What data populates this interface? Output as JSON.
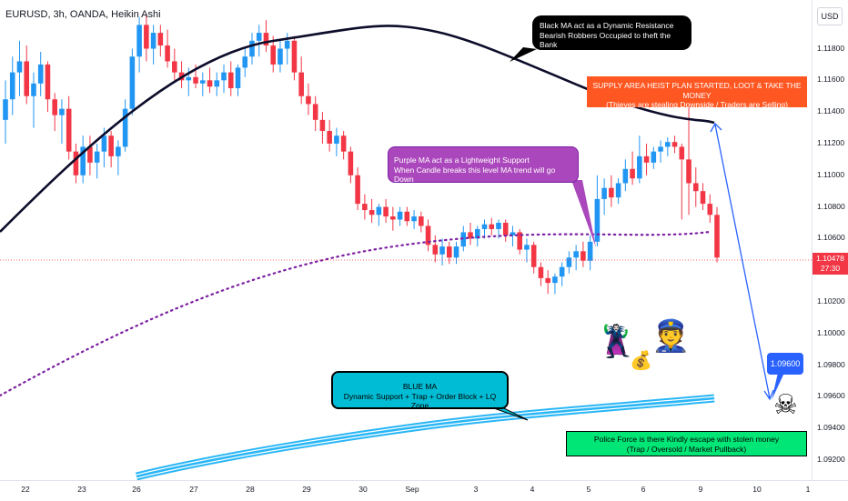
{
  "header": {
    "title": "EURUSD, 3h, OANDA, Heikin Ashi"
  },
  "currency_button": "USD",
  "price_tag": {
    "price": "1.10478",
    "countdown": "27:30"
  },
  "annotations": {
    "black_ma": [
      "Black MA act as a Dynamic Resistance",
      "Bearish Robbers Occupied to theft the Bank"
    ],
    "supply": [
      "SUPPLY AREA HEIST PLAN STARTED, LOOT & TAKE THE MONEY",
      "(Thieves are stealing Downside / Traders are Selling)"
    ],
    "purple_ma": [
      "Purple MA act as a Lightweight Support",
      "When Candle breaks this level MA trend will go Down"
    ],
    "blue_ma": [
      "BLUE MA",
      "Dynamic Support + Trap + Order Block + LQ Zone"
    ],
    "police": [
      "Police Force is there Kindly escape with stolen money",
      "(Trap / Oversold / Market Pullback)"
    ],
    "target": "1.09600"
  },
  "icons": {
    "robber": "thief-icon",
    "police": "police-officer-icon",
    "money": "money-bag-icon",
    "skull": "skull-crossbones-icon"
  },
  "colors": {
    "up": "#2196f3",
    "down": "#f23645",
    "black_ma": "#0d0d2b",
    "purple_ma": "#7b1fa2",
    "blue_ma": "#29b6f6",
    "arrow": "#2962ff"
  },
  "chart_data": {
    "type": "candlestick",
    "x_tick_labels": [
      "22",
      "23",
      "24",
      "25",
      "26",
      "27",
      "28",
      "29",
      "30",
      "Sep",
      "3",
      "4",
      "5",
      "6",
      "9",
      "10",
      "1"
    ],
    "y_tick_labels": [
      "1.11800",
      "1.11600",
      "1.11400",
      "1.11200",
      "1.11000",
      "1.10800",
      "1.10600",
      "1.10400",
      "1.10200",
      "1.10000",
      "1.09800",
      "1.09600",
      "1.09400",
      "1.09200"
    ],
    "ylim": [
      1.0912,
      1.1205
    ],
    "current_price": 1.10478,
    "target_price": 1.096,
    "candles": [
      {
        "o": 1.1135,
        "h": 1.116,
        "l": 1.112,
        "c": 1.1148
      },
      {
        "o": 1.1148,
        "h": 1.1175,
        "l": 1.1138,
        "c": 1.1165
      },
      {
        "o": 1.1165,
        "h": 1.1185,
        "l": 1.115,
        "c": 1.1172
      },
      {
        "o": 1.1172,
        "h": 1.1182,
        "l": 1.1145,
        "c": 1.115
      },
      {
        "o": 1.115,
        "h": 1.1165,
        "l": 1.113,
        "c": 1.1158
      },
      {
        "o": 1.1158,
        "h": 1.1178,
        "l": 1.115,
        "c": 1.117
      },
      {
        "o": 1.117,
        "h": 1.1172,
        "l": 1.114,
        "c": 1.1148
      },
      {
        "o": 1.1148,
        "h": 1.1152,
        "l": 1.1128,
        "c": 1.1138
      },
      {
        "o": 1.1138,
        "h": 1.1148,
        "l": 1.112,
        "c": 1.1142
      },
      {
        "o": 1.1142,
        "h": 1.115,
        "l": 1.111,
        "c": 1.1115
      },
      {
        "o": 1.1115,
        "h": 1.112,
        "l": 1.1095,
        "c": 1.11
      },
      {
        "o": 1.11,
        "h": 1.1125,
        "l": 1.1095,
        "c": 1.1118
      },
      {
        "o": 1.1118,
        "h": 1.1125,
        "l": 1.11,
        "c": 1.1108
      },
      {
        "o": 1.1108,
        "h": 1.112,
        "l": 1.1098,
        "c": 1.1115
      },
      {
        "o": 1.1115,
        "h": 1.113,
        "l": 1.1105,
        "c": 1.1125
      },
      {
        "o": 1.1125,
        "h": 1.1128,
        "l": 1.1105,
        "c": 1.1112
      },
      {
        "o": 1.1112,
        "h": 1.1122,
        "l": 1.11,
        "c": 1.1118
      },
      {
        "o": 1.1118,
        "h": 1.1148,
        "l": 1.1115,
        "c": 1.1142
      },
      {
        "o": 1.1142,
        "h": 1.118,
        "l": 1.1138,
        "c": 1.1175
      },
      {
        "o": 1.1175,
        "h": 1.12,
        "l": 1.1165,
        "c": 1.1195
      },
      {
        "o": 1.1195,
        "h": 1.1202,
        "l": 1.1172,
        "c": 1.118
      },
      {
        "o": 1.118,
        "h": 1.1195,
        "l": 1.117,
        "c": 1.119
      },
      {
        "o": 1.119,
        "h": 1.1195,
        "l": 1.1175,
        "c": 1.1182
      },
      {
        "o": 1.1182,
        "h": 1.1192,
        "l": 1.1168,
        "c": 1.1172
      },
      {
        "o": 1.1172,
        "h": 1.118,
        "l": 1.116,
        "c": 1.1165
      },
      {
        "o": 1.1165,
        "h": 1.1172,
        "l": 1.1155,
        "c": 1.116
      },
      {
        "o": 1.116,
        "h": 1.1168,
        "l": 1.115,
        "c": 1.1162
      },
      {
        "o": 1.1162,
        "h": 1.117,
        "l": 1.1155,
        "c": 1.1158
      },
      {
        "o": 1.1158,
        "h": 1.1165,
        "l": 1.115,
        "c": 1.116
      },
      {
        "o": 1.116,
        "h": 1.1168,
        "l": 1.1152,
        "c": 1.1156
      },
      {
        "o": 1.1156,
        "h": 1.1165,
        "l": 1.115,
        "c": 1.116
      },
      {
        "o": 1.116,
        "h": 1.117,
        "l": 1.1152,
        "c": 1.1165
      },
      {
        "o": 1.1165,
        "h": 1.1172,
        "l": 1.115,
        "c": 1.1155
      },
      {
        "o": 1.1155,
        "h": 1.117,
        "l": 1.115,
        "c": 1.1168
      },
      {
        "o": 1.1168,
        "h": 1.118,
        "l": 1.1162,
        "c": 1.1175
      },
      {
        "o": 1.1175,
        "h": 1.119,
        "l": 1.117,
        "c": 1.1185
      },
      {
        "o": 1.1185,
        "h": 1.1195,
        "l": 1.1175,
        "c": 1.119
      },
      {
        "o": 1.119,
        "h": 1.1198,
        "l": 1.1178,
        "c": 1.1182
      },
      {
        "o": 1.1182,
        "h": 1.1188,
        "l": 1.1165,
        "c": 1.117
      },
      {
        "o": 1.117,
        "h": 1.1185,
        "l": 1.1165,
        "c": 1.118
      },
      {
        "o": 1.118,
        "h": 1.119,
        "l": 1.117,
        "c": 1.1185
      },
      {
        "o": 1.1185,
        "h": 1.1188,
        "l": 1.116,
        "c": 1.1165
      },
      {
        "o": 1.1165,
        "h": 1.1175,
        "l": 1.1145,
        "c": 1.115
      },
      {
        "o": 1.115,
        "h": 1.1158,
        "l": 1.1138,
        "c": 1.1145
      },
      {
        "o": 1.1145,
        "h": 1.115,
        "l": 1.1128,
        "c": 1.1135
      },
      {
        "o": 1.1135,
        "h": 1.114,
        "l": 1.112,
        "c": 1.1128
      },
      {
        "o": 1.1128,
        "h": 1.1135,
        "l": 1.1115,
        "c": 1.112
      },
      {
        "o": 1.112,
        "h": 1.113,
        "l": 1.1112,
        "c": 1.1125
      },
      {
        "o": 1.1125,
        "h": 1.1128,
        "l": 1.111,
        "c": 1.1115
      },
      {
        "o": 1.1115,
        "h": 1.1118,
        "l": 1.1095,
        "c": 1.11
      },
      {
        "o": 1.11,
        "h": 1.1105,
        "l": 1.1078,
        "c": 1.1082
      },
      {
        "o": 1.1082,
        "h": 1.1088,
        "l": 1.1072,
        "c": 1.1078
      },
      {
        "o": 1.1078,
        "h": 1.1085,
        "l": 1.107,
        "c": 1.1075
      },
      {
        "o": 1.1075,
        "h": 1.1082,
        "l": 1.1068,
        "c": 1.108
      },
      {
        "o": 1.108,
        "h": 1.1085,
        "l": 1.107,
        "c": 1.1074
      },
      {
        "o": 1.1074,
        "h": 1.108,
        "l": 1.1065,
        "c": 1.1072
      },
      {
        "o": 1.1072,
        "h": 1.108,
        "l": 1.1068,
        "c": 1.1077
      },
      {
        "o": 1.1077,
        "h": 1.108,
        "l": 1.1068,
        "c": 1.1071
      },
      {
        "o": 1.1071,
        "h": 1.1078,
        "l": 1.1066,
        "c": 1.1074
      },
      {
        "o": 1.1074,
        "h": 1.1077,
        "l": 1.1064,
        "c": 1.1068
      },
      {
        "o": 1.1068,
        "h": 1.1072,
        "l": 1.1052,
        "c": 1.1056
      },
      {
        "o": 1.1056,
        "h": 1.1062,
        "l": 1.1045,
        "c": 1.105
      },
      {
        "o": 1.105,
        "h": 1.106,
        "l": 1.1043,
        "c": 1.1055
      },
      {
        "o": 1.1055,
        "h": 1.1058,
        "l": 1.1044,
        "c": 1.1048
      },
      {
        "o": 1.1048,
        "h": 1.1058,
        "l": 1.1044,
        "c": 1.1055
      },
      {
        "o": 1.1055,
        "h": 1.1068,
        "l": 1.1052,
        "c": 1.1064
      },
      {
        "o": 1.1064,
        "h": 1.107,
        "l": 1.1056,
        "c": 1.106
      },
      {
        "o": 1.106,
        "h": 1.1068,
        "l": 1.1055,
        "c": 1.1066
      },
      {
        "o": 1.1066,
        "h": 1.1072,
        "l": 1.106,
        "c": 1.1069
      },
      {
        "o": 1.1069,
        "h": 1.1073,
        "l": 1.1062,
        "c": 1.1066
      },
      {
        "o": 1.1066,
        "h": 1.1072,
        "l": 1.106,
        "c": 1.107
      },
      {
        "o": 1.107,
        "h": 1.1072,
        "l": 1.1058,
        "c": 1.1062
      },
      {
        "o": 1.1062,
        "h": 1.1068,
        "l": 1.1055,
        "c": 1.1064
      },
      {
        "o": 1.1064,
        "h": 1.1066,
        "l": 1.105,
        "c": 1.1053
      },
      {
        "o": 1.1053,
        "h": 1.106,
        "l": 1.1045,
        "c": 1.1056
      },
      {
        "o": 1.1056,
        "h": 1.1058,
        "l": 1.1038,
        "c": 1.1042
      },
      {
        "o": 1.1042,
        "h": 1.1045,
        "l": 1.103,
        "c": 1.1035
      },
      {
        "o": 1.1035,
        "h": 1.104,
        "l": 1.1025,
        "c": 1.1032
      },
      {
        "o": 1.1032,
        "h": 1.1038,
        "l": 1.1025,
        "c": 1.1036
      },
      {
        "o": 1.1036,
        "h": 1.1045,
        "l": 1.103,
        "c": 1.1042
      },
      {
        "o": 1.1042,
        "h": 1.1052,
        "l": 1.1038,
        "c": 1.1048
      },
      {
        "o": 1.1048,
        "h": 1.1056,
        "l": 1.104,
        "c": 1.1052
      },
      {
        "o": 1.1052,
        "h": 1.1058,
        "l": 1.1042,
        "c": 1.1046
      },
      {
        "o": 1.1046,
        "h": 1.1062,
        "l": 1.104,
        "c": 1.1058
      },
      {
        "o": 1.1058,
        "h": 1.11,
        "l": 1.1055,
        "c": 1.1085
      },
      {
        "o": 1.1085,
        "h": 1.1098,
        "l": 1.1075,
        "c": 1.1092
      },
      {
        "o": 1.1092,
        "h": 1.11,
        "l": 1.108,
        "c": 1.1086
      },
      {
        "o": 1.1086,
        "h": 1.1098,
        "l": 1.1082,
        "c": 1.1095
      },
      {
        "o": 1.1095,
        "h": 1.111,
        "l": 1.109,
        "c": 1.1104
      },
      {
        "o": 1.1104,
        "h": 1.1115,
        "l": 1.1094,
        "c": 1.1098
      },
      {
        "o": 1.1098,
        "h": 1.1125,
        "l": 1.1095,
        "c": 1.1112
      },
      {
        "o": 1.1112,
        "h": 1.112,
        "l": 1.11,
        "c": 1.1108
      },
      {
        "o": 1.1108,
        "h": 1.1118,
        "l": 1.1104,
        "c": 1.1115
      },
      {
        "o": 1.1115,
        "h": 1.1122,
        "l": 1.1108,
        "c": 1.1118
      },
      {
        "o": 1.1118,
        "h": 1.1124,
        "l": 1.1112,
        "c": 1.1121
      },
      {
        "o": 1.1121,
        "h": 1.1125,
        "l": 1.1114,
        "c": 1.1118
      },
      {
        "o": 1.1118,
        "h": 1.112,
        "l": 1.1072,
        "c": 1.111
      },
      {
        "o": 1.111,
        "h": 1.1145,
        "l": 1.1075,
        "c": 1.1095
      },
      {
        "o": 1.1095,
        "h": 1.1105,
        "l": 1.108,
        "c": 1.109
      },
      {
        "o": 1.109,
        "h": 1.1095,
        "l": 1.1078,
        "c": 1.1082
      },
      {
        "o": 1.1082,
        "h": 1.1088,
        "l": 1.107,
        "c": 1.1075
      },
      {
        "o": 1.1075,
        "h": 1.108,
        "l": 1.1045,
        "c": 1.1048
      }
    ]
  }
}
